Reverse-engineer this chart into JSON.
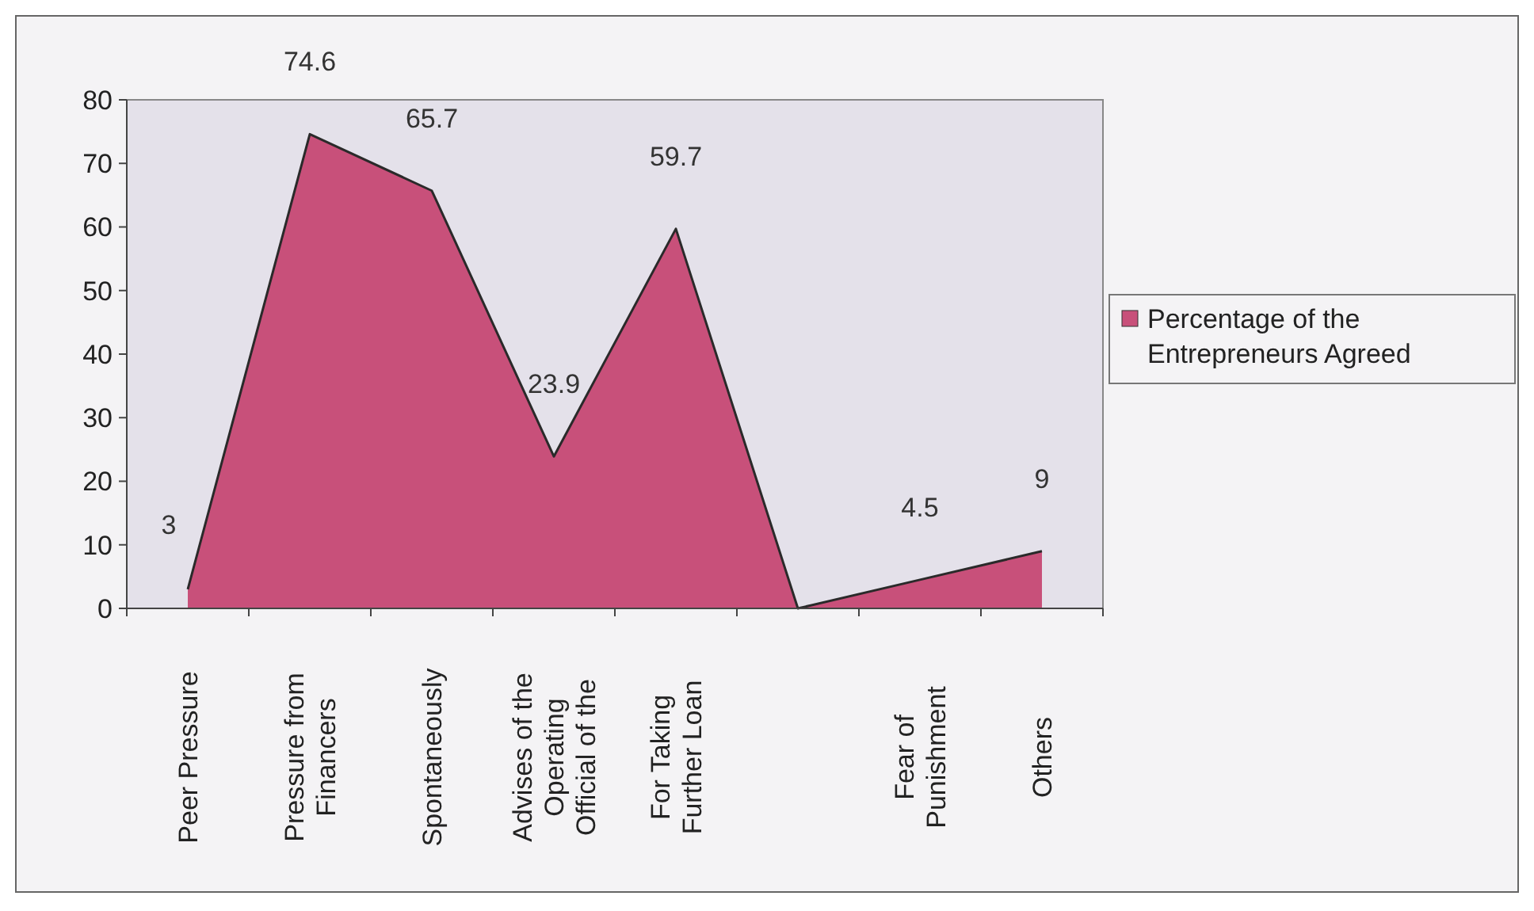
{
  "chart_data": {
    "type": "area",
    "categories": [
      "Peer Pressure",
      "Pressure from Financers",
      "Spontaneously",
      "Advises of the Operating Official of the",
      "For Taking Further Loan",
      null,
      "Fear of Punishment",
      "Others"
    ],
    "series": [
      {
        "name": "Percentage of the Entrepreneurs Agreed",
        "color": "#c8507a",
        "values": [
          3,
          74.6,
          65.7,
          23.9,
          59.7,
          0,
          4.5,
          9
        ],
        "value_labels": [
          "3",
          "74.6",
          "65.7",
          "23.9",
          "59.7",
          null,
          "4.5",
          "9"
        ]
      }
    ],
    "ylim": [
      0,
      80
    ],
    "yticks": [
      0,
      10,
      20,
      30,
      40,
      50,
      60,
      70,
      80
    ],
    "grid": false,
    "legend": "right"
  }
}
